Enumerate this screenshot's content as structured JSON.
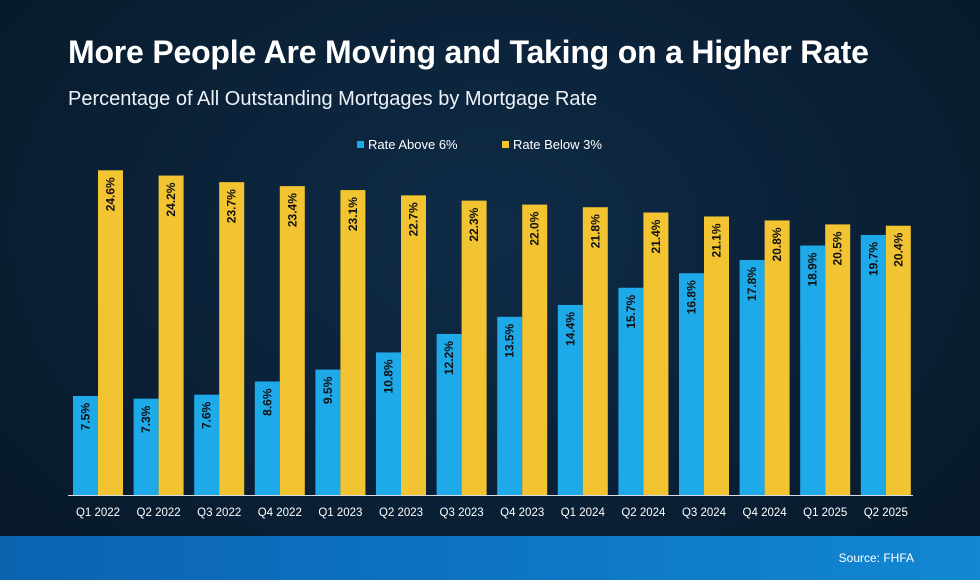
{
  "title": "More People Are Moving and Taking on a Higher Rate",
  "subtitle": "Percentage of All Outstanding Mortgages by Mortgage Rate",
  "source": "Source: FHFA",
  "colors": {
    "above": "#1ea9e8",
    "below": "#f3c431",
    "axis": "#d6dde4",
    "text": "#ffffff"
  },
  "chart_data": {
    "type": "bar",
    "title": "",
    "xlabel": "",
    "ylabel": "",
    "ylim": [
      0,
      26
    ],
    "grid": false,
    "legend_position": "top-center",
    "categories": [
      "Q1 2022",
      "Q2 2022",
      "Q3 2022",
      "Q4 2022",
      "Q1 2023",
      "Q2 2023",
      "Q3 2023",
      "Q4 2023",
      "Q1 2024",
      "Q2 2024",
      "Q3 2024",
      "Q4 2024",
      "Q1 2025",
      "Q2 2025"
    ],
    "series": [
      {
        "name": "Rate Above 6%",
        "values": [
          7.5,
          7.3,
          7.6,
          8.6,
          9.5,
          10.8,
          12.2,
          13.5,
          14.4,
          15.7,
          16.8,
          17.8,
          18.9,
          19.7
        ],
        "labels": [
          "7.5%",
          "7.3%",
          "7.6%",
          "8.6%",
          "9.5%",
          "10.8%",
          "12.2%",
          "13.5%",
          "14.4%",
          "15.7%",
          "16.8%",
          "17.8%",
          "18.9%",
          "19.7%"
        ]
      },
      {
        "name": "Rate Below 3%",
        "values": [
          24.6,
          24.2,
          23.7,
          23.4,
          23.1,
          22.7,
          22.3,
          22.0,
          21.8,
          21.4,
          21.1,
          20.8,
          20.5,
          20.4
        ],
        "labels": [
          "24.6%",
          "24.2%",
          "23.7%",
          "23.4%",
          "23.1%",
          "22.7%",
          "22.3%",
          "22.0%",
          "21.8%",
          "21.4%",
          "21.1%",
          "20.8%",
          "20.5%",
          "20.4%"
        ]
      }
    ]
  }
}
